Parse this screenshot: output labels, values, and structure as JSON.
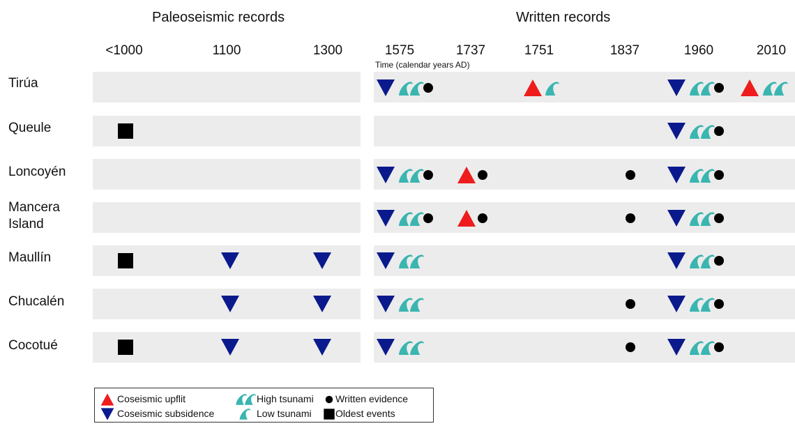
{
  "headers": {
    "paleoseismic": "Paleoseismic records",
    "written": "Written records"
  },
  "time_axis": {
    "caption": "Time (calendar years AD)",
    "periods": [
      "<1000",
      "1100",
      "1300",
      "1575",
      "1737",
      "1751",
      "1837",
      "1960",
      "2010"
    ]
  },
  "sites": [
    {
      "name": "Tirúa"
    },
    {
      "name": "Queule"
    },
    {
      "name": "Loncoyén"
    },
    {
      "name": "Mancera Island"
    },
    {
      "name": "Maullín"
    },
    {
      "name": "Chucalén"
    },
    {
      "name": "Cocotué"
    }
  ],
  "observations": [
    {
      "site": "Tirúa",
      "period": "1575",
      "evidence": [
        "subsidence",
        "high_tsunami",
        "written"
      ]
    },
    {
      "site": "Tirúa",
      "period": "1751",
      "evidence": [
        "upflit",
        "low_tsunami"
      ]
    },
    {
      "site": "Tirúa",
      "period": "1960",
      "evidence": [
        "subsidence",
        "high_tsunami",
        "written"
      ]
    },
    {
      "site": "Tirúa",
      "period": "2010",
      "evidence": [
        "upflit",
        "high_tsunami"
      ]
    },
    {
      "site": "Queule",
      "period": "<1000",
      "evidence": [
        "oldest"
      ]
    },
    {
      "site": "Queule",
      "period": "1960",
      "evidence": [
        "subsidence",
        "high_tsunami",
        "written"
      ]
    },
    {
      "site": "Loncoyén",
      "period": "1575",
      "evidence": [
        "subsidence",
        "high_tsunami",
        "written"
      ]
    },
    {
      "site": "Loncoyén",
      "period": "1737",
      "evidence": [
        "upflit",
        "written"
      ]
    },
    {
      "site": "Loncoyén",
      "period": "1837",
      "evidence": [
        "written"
      ]
    },
    {
      "site": "Loncoyén",
      "period": "1960",
      "evidence": [
        "subsidence",
        "high_tsunami",
        "written"
      ]
    },
    {
      "site": "Mancera Island",
      "period": "1575",
      "evidence": [
        "subsidence",
        "high_tsunami",
        "written"
      ]
    },
    {
      "site": "Mancera Island",
      "period": "1737",
      "evidence": [
        "upflit",
        "written"
      ]
    },
    {
      "site": "Mancera Island",
      "period": "1837",
      "evidence": [
        "written"
      ]
    },
    {
      "site": "Mancera Island",
      "period": "1960",
      "evidence": [
        "subsidence",
        "high_tsunami",
        "written"
      ]
    },
    {
      "site": "Maullín",
      "period": "<1000",
      "evidence": [
        "oldest"
      ]
    },
    {
      "site": "Maullín",
      "period": "1100",
      "evidence": [
        "subsidence"
      ]
    },
    {
      "site": "Maullín",
      "period": "1300",
      "evidence": [
        "subsidence"
      ]
    },
    {
      "site": "Maullín",
      "period": "1575",
      "evidence": [
        "subsidence",
        "high_tsunami"
      ]
    },
    {
      "site": "Maullín",
      "period": "1960",
      "evidence": [
        "subsidence",
        "high_tsunami",
        "written"
      ]
    },
    {
      "site": "Chucalén",
      "period": "1100",
      "evidence": [
        "subsidence"
      ]
    },
    {
      "site": "Chucalén",
      "period": "1300",
      "evidence": [
        "subsidence"
      ]
    },
    {
      "site": "Chucalén",
      "period": "1575",
      "evidence": [
        "subsidence",
        "high_tsunami"
      ]
    },
    {
      "site": "Chucalén",
      "period": "1837",
      "evidence": [
        "written"
      ]
    },
    {
      "site": "Chucalén",
      "period": "1960",
      "evidence": [
        "subsidence",
        "high_tsunami",
        "written"
      ]
    },
    {
      "site": "Cocotué",
      "period": "<1000",
      "evidence": [
        "oldest"
      ]
    },
    {
      "site": "Cocotué",
      "period": "1100",
      "evidence": [
        "subsidence"
      ]
    },
    {
      "site": "Cocotué",
      "period": "1300",
      "evidence": [
        "subsidence"
      ]
    },
    {
      "site": "Cocotué",
      "period": "1575",
      "evidence": [
        "subsidence",
        "high_tsunami"
      ]
    },
    {
      "site": "Cocotué",
      "period": "1837",
      "evidence": [
        "written"
      ]
    },
    {
      "site": "Cocotué",
      "period": "1960",
      "evidence": [
        "subsidence",
        "high_tsunami",
        "written"
      ]
    }
  ],
  "legend": {
    "upflit": "Coseismic upflit",
    "subsidence": "Coseismic subsidence",
    "high_tsunami": "High tsunami",
    "low_tsunami": "Low tsunami",
    "written": "Written evidence",
    "oldest": "Oldest events"
  },
  "colors": {
    "upflit": "#ee1c1c",
    "subsidence": "#0a1a8c",
    "tsunami": "#3ab5b0",
    "written": "#000000",
    "oldest": "#000000",
    "band": "#ececec"
  }
}
